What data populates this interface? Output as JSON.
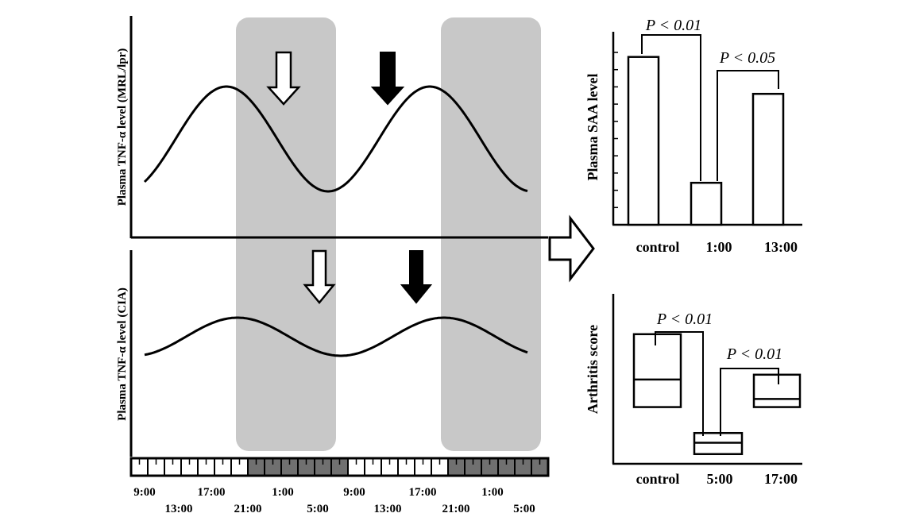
{
  "left_panel": {
    "top_ylabel": "Plasma TNF-α level (MRL/lpr)",
    "bottom_ylabel": "Plasma TNF-α level (CIA)",
    "time_labels_top": [
      "9:00",
      "17:00",
      "1:00",
      "9:00",
      "17:00",
      "1:00"
    ],
    "time_labels_bottom": [
      "13:00",
      "21:00",
      "5:00",
      "13:00",
      "21:00",
      "5:00"
    ],
    "light_dark_bar": [
      "light",
      "light",
      "light",
      "light",
      "light",
      "light",
      "light",
      "dark",
      "dark",
      "dark",
      "dark",
      "dark",
      "dark",
      "light",
      "light",
      "light",
      "light",
      "light",
      "light",
      "dark",
      "dark",
      "dark",
      "dark",
      "dark",
      "dark"
    ],
    "shade_color": "#c8c8c8",
    "dark_cell_color": "#707070"
  },
  "right_top": {
    "ylabel": "Plasma SAA level",
    "categories": [
      "control",
      "1:00",
      "13:00"
    ],
    "values": [
      100,
      25,
      78
    ],
    "ylim": [
      0,
      115
    ],
    "pvalues": [
      "P < 0.01",
      "P < 0.05"
    ]
  },
  "right_bottom": {
    "ylabel": "Arthritis score",
    "categories": [
      "control",
      "5:00",
      "17:00"
    ],
    "boxes": [
      {
        "q1": 35,
        "median": 52,
        "q3": 80
      },
      {
        "q1": 6,
        "median": 13,
        "q3": 19
      },
      {
        "q1": 35,
        "median": 40,
        "q3": 55
      }
    ],
    "ylim": [
      0,
      100
    ],
    "pvalues": [
      "P < 0.01",
      "P < 0.01"
    ]
  }
}
